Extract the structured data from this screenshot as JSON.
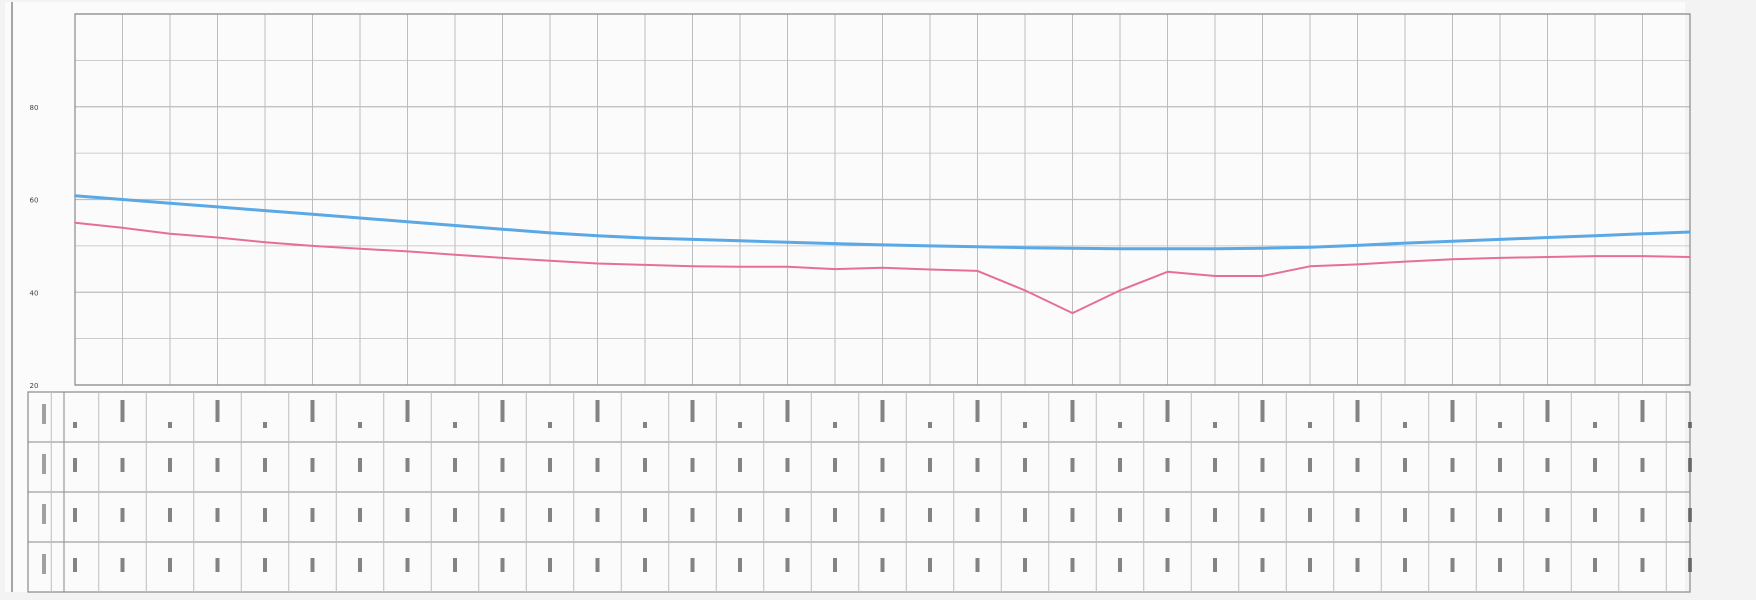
{
  "colors": {
    "background": "#f3f3f3",
    "paper": "#fbfbfb",
    "grid": "#bdbdbd",
    "frame": "#8a8a8a",
    "text": "#444444",
    "series_blue": "#5aa9e6",
    "series_pink": "#e66f9a"
  },
  "chart_data": {
    "type": "line",
    "title": "",
    "xlabel": "",
    "ylabel": "",
    "y_ticks": [
      {
        "value": 20,
        "label": "20"
      },
      {
        "value": 40,
        "label": "40"
      },
      {
        "value": 60,
        "label": "60"
      },
      {
        "value": 80,
        "label": "80"
      }
    ],
    "ylim": [
      20,
      100
    ],
    "x_count": 35,
    "grid": true,
    "series": [
      {
        "color": "#5aa9e6",
        "values": [
          60.8,
          60.0,
          59.2,
          58.4,
          57.6,
          56.8,
          56.0,
          55.2,
          54.4,
          53.6,
          52.8,
          52.2,
          51.7,
          51.4,
          51.1,
          50.8,
          50.5,
          50.2,
          50.0,
          49.8,
          49.6,
          49.5,
          49.4,
          49.4,
          49.4,
          49.5,
          49.7,
          50.1,
          50.6,
          51.0,
          51.4,
          51.8,
          52.2,
          52.6,
          53.0
        ]
      },
      {
        "color": "#e66f9a",
        "values": [
          55.0,
          53.9,
          52.6,
          51.8,
          50.8,
          50.0,
          49.4,
          48.8,
          48.1,
          47.4,
          46.8,
          46.2,
          45.9,
          45.6,
          45.5,
          45.5,
          45.0,
          45.3,
          44.9,
          44.6,
          40.4,
          35.5,
          40.4,
          44.4,
          43.5,
          43.5,
          45.6,
          46.0,
          46.6,
          47.1,
          47.4,
          47.6,
          47.8,
          47.8,
          47.6
        ]
      }
    ]
  }
}
